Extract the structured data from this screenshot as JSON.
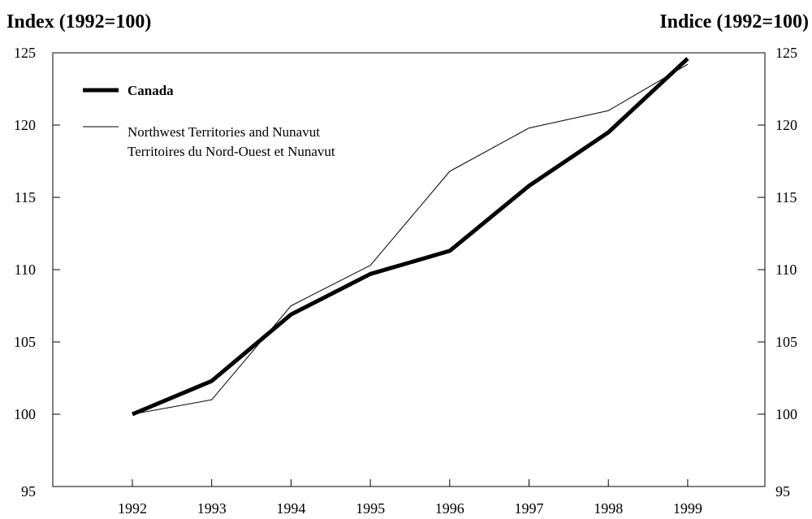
{
  "chart_data": {
    "type": "line",
    "ylabel_left": "Index (1992=100)",
    "ylabel_right": "Indice (1992=100)",
    "x": [
      "1992",
      "1993",
      "1994",
      "1995",
      "1996",
      "1997",
      "1998",
      "1999"
    ],
    "ylim": [
      95,
      125
    ],
    "yticks": [
      "95",
      "100",
      "105",
      "110",
      "115",
      "120",
      "125"
    ],
    "grid": false,
    "legend_position": "top-left",
    "series": [
      {
        "name": "Canada",
        "label_lines": [
          "Canada"
        ],
        "values": [
          100,
          102.3,
          106.9,
          109.7,
          111.3,
          115.8,
          119.5,
          124.6
        ],
        "color": "#000000",
        "style": "thick"
      },
      {
        "name": "Northwest Territories and Nunavut / Territoires du Nord-Ouest et Nunavut",
        "label_lines": [
          "Northwest Territories and Nunavut",
          "Territoires du Nord-Ouest et Nunavut"
        ],
        "values": [
          100,
          101,
          107.5,
          110.3,
          116.8,
          119.8,
          121,
          124.2
        ],
        "color": "#000000",
        "style": "thin"
      }
    ]
  }
}
